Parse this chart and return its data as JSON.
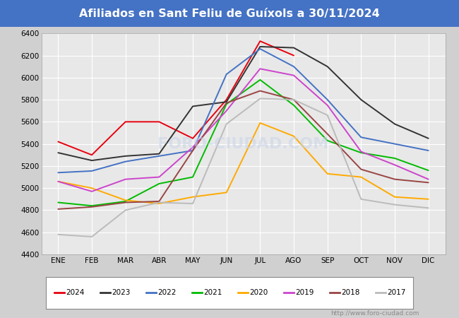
{
  "title": "Afiliados en Sant Feliu de Guíxols a 30/11/2024",
  "title_color": "#ffffff",
  "title_bg_color": "#4472c4",
  "ylim": [
    4400,
    6400
  ],
  "yticks": [
    4400,
    4600,
    4800,
    5000,
    5200,
    5400,
    5600,
    5800,
    6000,
    6200,
    6400
  ],
  "months": [
    "ENE",
    "FEB",
    "MAR",
    "ABR",
    "MAY",
    "JUN",
    "JUL",
    "AGO",
    "SEP",
    "OCT",
    "NOV",
    "DIC"
  ],
  "background_color": "#d0d0d0",
  "plot_bg_color": "#e8e8e8",
  "grid_color": "#ffffff",
  "watermark_text": "FORO-CIUDAD.COM",
  "watermark_url": "http://www.foro-ciudad.com",
  "series": [
    {
      "label": "2024",
      "color": "#e8000e",
      "linewidth": 1.4,
      "data": [
        5420,
        5300,
        5600,
        5600,
        5450,
        5800,
        6330,
        6200,
        null,
        null,
        null,
        null
      ]
    },
    {
      "label": "2023",
      "color": "#333333",
      "linewidth": 1.4,
      "data": [
        5320,
        5250,
        5290,
        5310,
        5740,
        5780,
        6280,
        6270,
        6100,
        5800,
        5580,
        5450
      ]
    },
    {
      "label": "2022",
      "color": "#4472c4",
      "linewidth": 1.4,
      "data": [
        5140,
        5155,
        5240,
        5290,
        5340,
        6030,
        6260,
        6100,
        5800,
        5460,
        5400,
        5340
      ]
    },
    {
      "label": "2021",
      "color": "#00bb00",
      "linewidth": 1.4,
      "data": [
        4870,
        4840,
        4880,
        5040,
        5100,
        5760,
        5980,
        5750,
        5430,
        5320,
        5270,
        5160
      ]
    },
    {
      "label": "2020",
      "color": "#ffaa00",
      "linewidth": 1.4,
      "data": [
        5060,
        5000,
        4890,
        4860,
        4920,
        4960,
        5590,
        5470,
        5130,
        5100,
        4920,
        4900
      ]
    },
    {
      "label": "2019",
      "color": "#cc44cc",
      "linewidth": 1.4,
      "data": [
        5060,
        4970,
        5080,
        5100,
        5370,
        5700,
        6080,
        6020,
        5750,
        5330,
        5210,
        5080
      ]
    },
    {
      "label": "2018",
      "color": "#994444",
      "linewidth": 1.4,
      "data": [
        4810,
        4830,
        4870,
        4880,
        5340,
        5770,
        5880,
        5800,
        5490,
        5170,
        5080,
        5050
      ]
    },
    {
      "label": "2017",
      "color": "#bbbbbb",
      "linewidth": 1.4,
      "data": [
        4580,
        4560,
        4800,
        4870,
        4860,
        5580,
        5810,
        5800,
        5660,
        4900,
        4850,
        4820
      ]
    }
  ]
}
